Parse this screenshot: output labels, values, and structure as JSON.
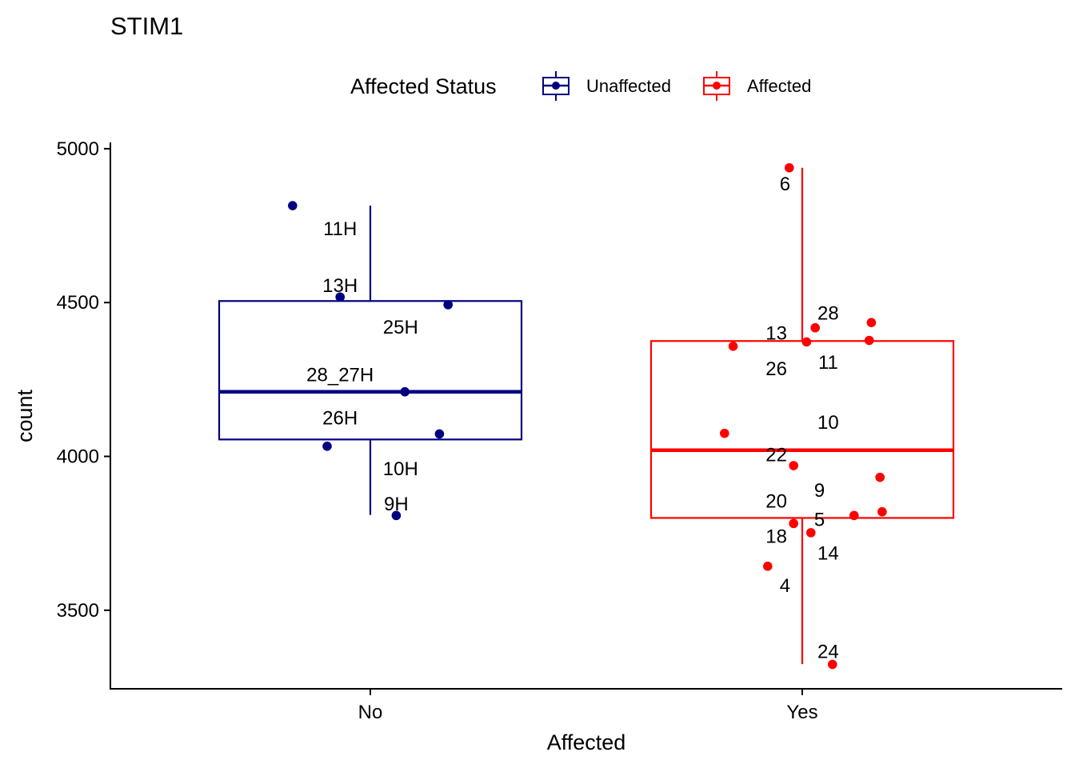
{
  "chart_data": {
    "type": "boxplot",
    "title": "STIM1",
    "xlabel": "Affected",
    "ylabel": "count",
    "ylim": [
      3250,
      5020
    ],
    "yticks": [
      3500,
      4000,
      4500,
      5000
    ],
    "categories": [
      "No",
      "Yes"
    ],
    "legend": {
      "title": "Affected Status",
      "position": "top",
      "entries": [
        {
          "label": "Unaffected",
          "color": "#000080"
        },
        {
          "label": "Affected",
          "color": "#ff0000"
        }
      ]
    },
    "grid": false,
    "boxes": [
      {
        "category": "No",
        "group": "Unaffected",
        "color": "#000080",
        "min": 3810,
        "q1": 4055,
        "median": 4210,
        "q3": 4505,
        "max": 4815
      },
      {
        "category": "Yes",
        "group": "Affected",
        "color": "#ff0000",
        "min": 3325,
        "q1": 3800,
        "median": 4020,
        "q3": 4375,
        "max": 4938
      }
    ],
    "points": [
      {
        "category": "No",
        "jitter": -0.18,
        "value": 4815,
        "label": "11H",
        "label_jitter": -0.07,
        "label_value": 4740
      },
      {
        "category": "No",
        "jitter": -0.07,
        "value": 4518,
        "label": "13H",
        "label_jitter": -0.07,
        "label_value": 4555
      },
      {
        "category": "No",
        "jitter": 0.18,
        "value": 4493,
        "label": "25H",
        "label_jitter": 0.07,
        "label_value": 4420
      },
      {
        "category": "No",
        "jitter": 0.08,
        "value": 4210,
        "label": "28_27H",
        "label_jitter": -0.07,
        "label_value": 4265
      },
      {
        "category": "No",
        "jitter": 0.16,
        "value": 4073,
        "label": "26H",
        "label_jitter": -0.07,
        "label_value": 4125
      },
      {
        "category": "No",
        "jitter": -0.1,
        "value": 4033,
        "label": "10H",
        "label_jitter": 0.07,
        "label_value": 3960
      },
      {
        "category": "No",
        "jitter": 0.06,
        "value": 3808,
        "label": "9H",
        "label_jitter": 0.06,
        "label_value": 3845
      },
      {
        "category": "Yes",
        "jitter": -0.03,
        "value": 4938,
        "label": "6",
        "label_jitter": -0.04,
        "label_value": 4885
      },
      {
        "category": "Yes",
        "jitter": 0.03,
        "value": 4418,
        "label": "28",
        "label_jitter": 0.06,
        "label_value": 4465
      },
      {
        "category": "Yes",
        "jitter": 0.16,
        "value": 4435,
        "label": "",
        "label_jitter": 0,
        "label_value": 0
      },
      {
        "category": "Yes",
        "jitter": 0.01,
        "value": 4372,
        "label": "13",
        "label_jitter": -0.06,
        "label_value": 4400
      },
      {
        "category": "Yes",
        "jitter": -0.16,
        "value": 4358,
        "label": "26",
        "label_jitter": -0.06,
        "label_value": 4285
      },
      {
        "category": "Yes",
        "jitter": 0.155,
        "value": 4377,
        "label": "11",
        "label_jitter": 0.06,
        "label_value": 4305
      },
      {
        "category": "Yes",
        "jitter": -0.18,
        "value": 4075,
        "label": "10",
        "label_jitter": 0.06,
        "label_value": 4110
      },
      {
        "category": "Yes",
        "jitter": -0.02,
        "value": 3970,
        "label": "22",
        "label_jitter": -0.06,
        "label_value": 4005
      },
      {
        "category": "Yes",
        "jitter": 0.18,
        "value": 3932,
        "label": "9",
        "label_jitter": 0.04,
        "label_value": 3890
      },
      {
        "category": "Yes",
        "jitter": 0.185,
        "value": 3820,
        "label": "20",
        "label_jitter": -0.06,
        "label_value": 3855
      },
      {
        "category": "Yes",
        "jitter": 0.12,
        "value": 3808,
        "label": "5",
        "label_jitter": 0.04,
        "label_value": 3795
      },
      {
        "category": "Yes",
        "jitter": -0.02,
        "value": 3782,
        "label": "18",
        "label_jitter": -0.06,
        "label_value": 3740
      },
      {
        "category": "Yes",
        "jitter": 0.02,
        "value": 3752,
        "label": "14",
        "label_jitter": 0.06,
        "label_value": 3685
      },
      {
        "category": "Yes",
        "jitter": -0.08,
        "value": 3643,
        "label": "4",
        "label_jitter": -0.04,
        "label_value": 3580
      },
      {
        "category": "Yes",
        "jitter": 0.07,
        "value": 3324,
        "label": "24",
        "label_jitter": 0.06,
        "label_value": 3365
      }
    ]
  }
}
